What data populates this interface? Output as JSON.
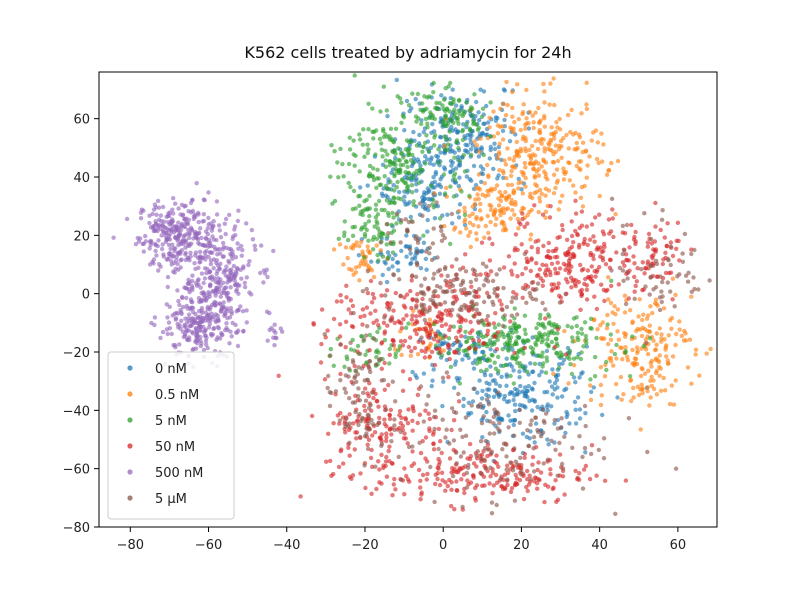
{
  "chart_data": {
    "type": "scatter",
    "title": "K562 cells treated by adriamycin for 24h",
    "xlabel": "",
    "ylabel": "",
    "xlim": [
      -88,
      70
    ],
    "ylim": [
      -80,
      76
    ],
    "x_ticks": [
      -80,
      -60,
      -40,
      -20,
      0,
      20,
      40,
      60
    ],
    "y_ticks": [
      -80,
      -60,
      -40,
      -20,
      0,
      20,
      40,
      60
    ],
    "x_tick_labels": [
      "−80",
      "−60",
      "−40",
      "−20",
      "0",
      "20",
      "40",
      "60"
    ],
    "y_tick_labels": [
      "−80",
      "−60",
      "−40",
      "−20",
      "0",
      "20",
      "40",
      "60"
    ],
    "grid": false,
    "legend_position": "lower-left",
    "series": [
      {
        "name": "0 nM",
        "color": "#1f77b4",
        "clusters": [
          {
            "center": [
              5,
              54
            ],
            "spread": [
              8,
              9
            ],
            "n": 220
          },
          {
            "center": [
              -5,
              36
            ],
            "spread": [
              6,
              7
            ],
            "n": 120
          },
          {
            "center": [
              20,
              -35
            ],
            "spread": [
              9,
              8
            ],
            "n": 220
          },
          {
            "center": [
              -10,
              12
            ],
            "spread": [
              5,
              4
            ],
            "n": 50
          },
          {
            "center": [
              5,
              -20
            ],
            "spread": [
              6,
              4
            ],
            "n": 60
          }
        ]
      },
      {
        "name": "0.5 nM",
        "color": "#ff7f0e",
        "clusters": [
          {
            "center": [
              25,
              48
            ],
            "spread": [
              8,
              10
            ],
            "n": 280
          },
          {
            "center": [
              12,
              28
            ],
            "spread": [
              6,
              5
            ],
            "n": 100
          },
          {
            "center": [
              50,
              -18
            ],
            "spread": [
              7,
              10
            ],
            "n": 200
          },
          {
            "center": [
              -22,
              12
            ],
            "spread": [
              3,
              5
            ],
            "n": 40
          },
          {
            "center": [
              -5,
              -15
            ],
            "spread": [
              4,
              4
            ],
            "n": 30
          }
        ]
      },
      {
        "name": "5 nM",
        "color": "#2ca02c",
        "clusters": [
          {
            "center": [
              -10,
              45
            ],
            "spread": [
              8,
              10
            ],
            "n": 220
          },
          {
            "center": [
              0,
              62
            ],
            "spread": [
              6,
              4
            ],
            "n": 80
          },
          {
            "center": [
              20,
              -17
            ],
            "spread": [
              12,
              5
            ],
            "n": 260
          },
          {
            "center": [
              -18,
              25
            ],
            "spread": [
              4,
              6
            ],
            "n": 80
          },
          {
            "center": [
              -20,
              -20
            ],
            "spread": [
              4,
              4
            ],
            "n": 40
          }
        ]
      },
      {
        "name": "50 nM",
        "color": "#d62728",
        "clusters": [
          {
            "center": [
              35,
              12
            ],
            "spread": [
              10,
              8
            ],
            "n": 260
          },
          {
            "center": [
              -5,
              -10
            ],
            "spread": [
              12,
              8
            ],
            "n": 260
          },
          {
            "center": [
              10,
              -62
            ],
            "spread": [
              14,
              5
            ],
            "n": 220
          },
          {
            "center": [
              -15,
              -45
            ],
            "spread": [
              8,
              8
            ],
            "n": 160
          },
          {
            "center": [
              55,
              15
            ],
            "spread": [
              4,
              6
            ],
            "n": 40
          }
        ]
      },
      {
        "name": "500 nM",
        "color": "#9467bd",
        "clusters": [
          {
            "center": [
              -68,
              20
            ],
            "spread": [
              5,
              6
            ],
            "n": 260
          },
          {
            "center": [
              -58,
              5
            ],
            "spread": [
              5,
              10
            ],
            "n": 300
          },
          {
            "center": [
              -63,
              -12
            ],
            "spread": [
              5,
              5
            ],
            "n": 180
          },
          {
            "center": [
              -43,
              -14
            ],
            "spread": [
              1,
              1.5
            ],
            "n": 12
          }
        ]
      },
      {
        "name": "5 μM",
        "color": "#8c564b",
        "clusters": [
          {
            "center": [
              5,
              0
            ],
            "spread": [
              10,
              5
            ],
            "n": 140
          },
          {
            "center": [
              10,
              -50
            ],
            "spread": [
              15,
              10
            ],
            "n": 160
          },
          {
            "center": [
              -22,
              -35
            ],
            "spread": [
              4,
              10
            ],
            "n": 80
          },
          {
            "center": [
              55,
              10
            ],
            "spread": [
              6,
              12
            ],
            "n": 60
          },
          {
            "center": [
              -5,
              20
            ],
            "spread": [
              5,
              5
            ],
            "n": 40
          }
        ]
      }
    ]
  }
}
